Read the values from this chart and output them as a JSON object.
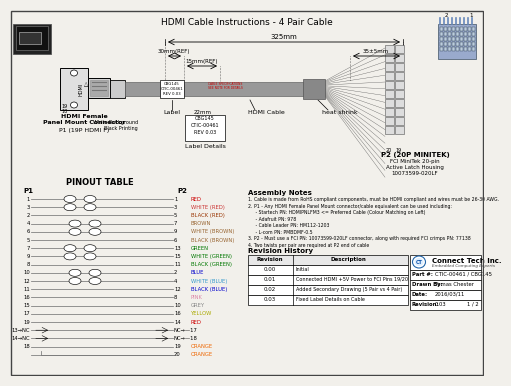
{
  "title": "HDMI Cable Instructions - 4 Pair Cable",
  "bg_color": "#f2f0eb",
  "pinout_rows": [
    {
      "p1": "1",
      "p2": "1",
      "label": "RED",
      "color": "#cc0000",
      "twist": 1
    },
    {
      "p1": "3",
      "p2": "3",
      "label": "WHITE (RED)",
      "color": "#cc3333",
      "twist": 1
    },
    {
      "p1": "2",
      "p2": "5",
      "label": "BLACK (RED)",
      "color": "#993300",
      "twist": 0
    },
    {
      "p1": "4",
      "p2": "7",
      "label": "BROWN",
      "color": "#996633",
      "twist": 2
    },
    {
      "p1": "6",
      "p2": "9",
      "label": "WHITE (BROWN)",
      "color": "#996633",
      "twist": 2
    },
    {
      "p1": "5",
      "p2": "6",
      "label": "BLACK (BROWN)",
      "color": "#996633",
      "twist": 0
    },
    {
      "p1": "7",
      "p2": "13",
      "label": "GREEN",
      "color": "#007700",
      "twist": 3
    },
    {
      "p1": "9",
      "p2": "15",
      "label": "WHITE (GREEN)",
      "color": "#007700",
      "twist": 3
    },
    {
      "p1": "8",
      "p2": "11",
      "label": "BLACK (GREEN)",
      "color": "#007700",
      "twist": 0
    },
    {
      "p1": "10",
      "p2": "2",
      "label": "BLUE",
      "color": "#0000cc",
      "twist": 4
    },
    {
      "p1": "12",
      "p2": "4",
      "label": "WHITE (BLUE)",
      "color": "#3399cc",
      "twist": 4
    },
    {
      "p1": "11",
      "p2": "12",
      "label": "BLACK (BLUE)",
      "color": "#0000cc",
      "twist": 0
    },
    {
      "p1": "16",
      "p2": "8",
      "label": "PINK",
      "color": "#dd88aa",
      "twist": 0
    },
    {
      "p1": "15",
      "p2": "10",
      "label": "GREY",
      "color": "#888888",
      "twist": 0
    },
    {
      "p1": "17",
      "p2": "16",
      "label": "YELLOW",
      "color": "#aaaa00",
      "twist": 0
    },
    {
      "p1": "19",
      "p2": "14",
      "label": "RED",
      "color": "#cc0000",
      "twist": 0
    },
    {
      "p1": "13→NC",
      "p2": "NC→—17",
      "label": "",
      "color": "#000000",
      "twist": 0
    },
    {
      "p1": "14→NC",
      "p2": "NC→—18",
      "label": "",
      "color": "#000000",
      "twist": 0
    },
    {
      "p1": "18",
      "p2": "19",
      "label": "ORANGE",
      "color": "#ee6600",
      "twist": 0
    },
    {
      "p1": "",
      "p2": "20",
      "label": "ORANGE",
      "color": "#ee6600",
      "twist": 0
    }
  ],
  "assembly_notes_title": "Assembly Notes",
  "assembly_notes": [
    "1. Cable is made from RoHS compliant components, must be HDMI compliant and wires must be 26-30 AWG.",
    "2. P1 - Any HDMI Female Panel Mount connector/cable equivalent can be used including:",
    "     - Startech PN: HDMIPNLFM3 <= Preferred Cable (Colour Matching on Left)",
    "     - Adafruit PN: 978",
    "     - Cable Leader PN: HM112-1203",
    "     - L-com PN: PMBDMF-0.5",
    "3. P2 - Must use a FCI PN: 10073599-020LF connector, along with required FCI crimps PN: 77138",
    "4. Two twists per pair are required at P2 end of cable"
  ],
  "revision_history": [
    {
      "rev": "0.00",
      "desc": "Initial"
    },
    {
      "rev": "0.01",
      "desc": "Connected HDMI +5V Power to FCI Pins 19/20"
    },
    {
      "rev": "0.02",
      "desc": "Added Secondary Drawing (5 Pair vs 4 Pair)"
    },
    {
      "rev": "0.03",
      "desc": "Fixed Label Details on Cable"
    }
  ],
  "part_num": "CTIC-00461 / CBG145",
  "drawn_by": "Tomas Chester",
  "date": "2016/03/11",
  "revision": "0.03",
  "page": "1 / 2",
  "p1_label": "P1 (19P HDMI F)",
  "p2_label": "P2 (20P MINITEK)",
  "p2_sub1": "FCI MiniTek 20-pin",
  "p2_sub2": "Active Latch Housing",
  "p2_sub3": "10073599-020LF",
  "dim_325": "325mm",
  "dim_30": "30mm(REF)",
  "dim_15": "15mm(REF)",
  "dim_35": "35±5mm",
  "label_text": "Label",
  "hdmi_cable_text": "HDMI Cable",
  "heat_shrink_text": "heat shrink",
  "label_detail_text": "Label Details",
  "label_box_text": "CBG145\nCTIC-00461\nREV 0.03",
  "white_bg_text": "White Background\nBlack Printing",
  "pinout_title": "PINOUT TABLE",
  "p1_hdmi_label1": "HDMI Female",
  "p1_hdmi_label2": "Panel Mount Connector"
}
